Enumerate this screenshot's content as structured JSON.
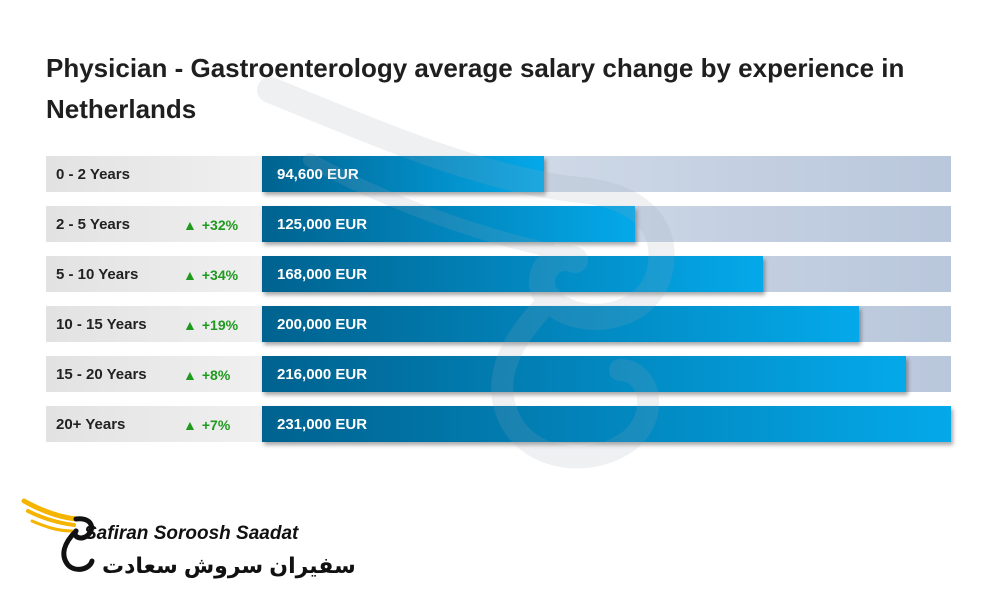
{
  "chart_data": {
    "type": "bar",
    "orientation": "horizontal",
    "title": "Physician - Gastroenterology average salary change by experience in Netherlands",
    "unit": "EUR",
    "xlim": [
      0,
      231000
    ],
    "categories": [
      "0 - 2 Years",
      "2 - 5 Years",
      "5 - 10 Years",
      "10 - 15 Years",
      "15 - 20 Years",
      "20+ Years"
    ],
    "values": [
      94600,
      125000,
      168000,
      200000,
      216000,
      231000
    ],
    "value_labels": [
      "94,600 EUR",
      "125,000 EUR",
      "168,000 EUR",
      "200,000 EUR",
      "216,000 EUR",
      "231,000 EUR"
    ],
    "changes": [
      "",
      "+32%",
      "+34%",
      "+19%",
      "+8%",
      "+7%"
    ],
    "change_icon": "up-triangle-icon",
    "colors": {
      "bar_dark": "#00628f",
      "bar_light": "#04a9ea",
      "track": "#c7d3e4",
      "increase": "#1f9a1f"
    }
  },
  "brand": {
    "name_en": "Safiran Soroosh Saadat",
    "name_fa": "سفیران سروش سعادت",
    "icon": "wing-s-logo-icon",
    "color": "#f5b400"
  }
}
